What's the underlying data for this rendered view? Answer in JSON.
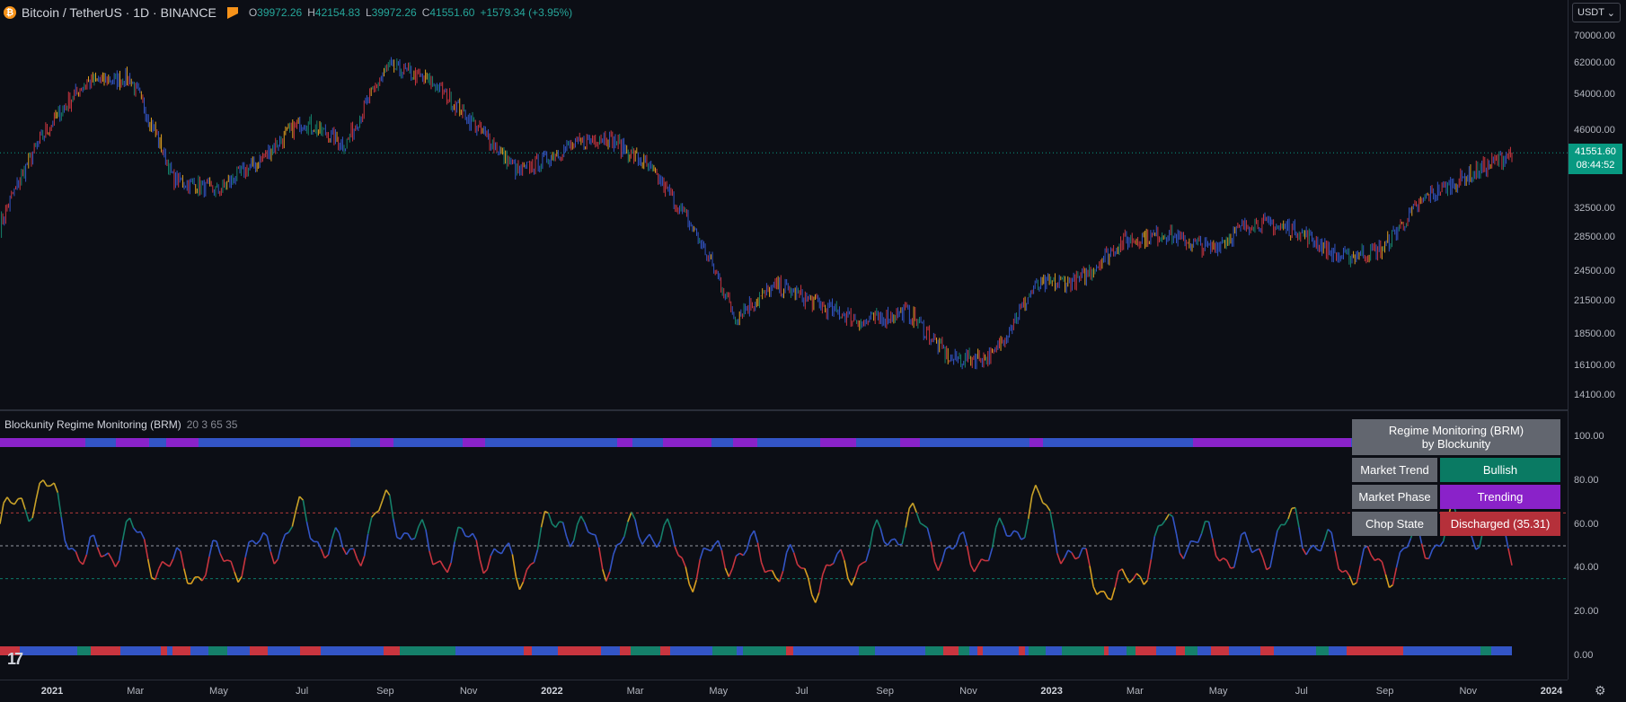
{
  "header": {
    "logo_glyph": "₿",
    "symbol": "Bitcoin / TetherUS · 1D · BINANCE",
    "ohlc": {
      "o_key": "O",
      "o": "39972.26",
      "h_key": "H",
      "h": "42154.83",
      "l_key": "L",
      "l": "39972.26",
      "c_key": "C",
      "c": "41551.60",
      "change": "+1579.34 (+3.95%)"
    }
  },
  "currency_button": {
    "label": "USDT",
    "chevron": "⌄"
  },
  "price_axis": [
    "70000.00",
    "62000.00",
    "54000.00",
    "46000.00",
    "32500.00",
    "28500.00",
    "24500.00",
    "21500.00",
    "18500.00",
    "16100.00",
    "14100.00"
  ],
  "price_axis_values": [
    70000,
    62000,
    54000,
    46000,
    32500,
    28500,
    24500,
    21500,
    18500,
    16100,
    14100
  ],
  "last_price": {
    "price": "41551.60",
    "countdown": "08:44:52"
  },
  "indicator": {
    "name": "Blockunity Regime Monitoring (BRM)",
    "params": "20 3 65 35",
    "axis": [
      "100.00",
      "80.00",
      "60.00",
      "40.00",
      "20.00",
      "0.00"
    ],
    "axis_values": [
      100,
      80,
      60,
      40,
      20,
      0
    ],
    "levels": {
      "upper": 65,
      "mid": 50,
      "lower": 35
    }
  },
  "time_axis": [
    {
      "label": "2021",
      "bold": true
    },
    {
      "label": "Mar",
      "bold": false
    },
    {
      "label": "May",
      "bold": false
    },
    {
      "label": "Jul",
      "bold": false
    },
    {
      "label": "Sep",
      "bold": false
    },
    {
      "label": "Nov",
      "bold": false
    },
    {
      "label": "2022",
      "bold": true
    },
    {
      "label": "Mar",
      "bold": false
    },
    {
      "label": "May",
      "bold": false
    },
    {
      "label": "Jul",
      "bold": false
    },
    {
      "label": "Sep",
      "bold": false
    },
    {
      "label": "Nov",
      "bold": false
    },
    {
      "label": "2023",
      "bold": true
    },
    {
      "label": "Mar",
      "bold": false
    },
    {
      "label": "May",
      "bold": false
    },
    {
      "label": "Jul",
      "bold": false
    },
    {
      "label": "Sep",
      "bold": false
    },
    {
      "label": "Nov",
      "bold": false
    },
    {
      "label": "2024",
      "bold": true
    }
  ],
  "table": {
    "title_line1": "Regime Monitoring (BRM)",
    "title_line2": "by Blockunity",
    "rows": [
      {
        "key": "Market Trend",
        "value": "Bullish",
        "color": "#0a7a63"
      },
      {
        "key": "Market Phase",
        "value": "Trending",
        "color": "#8a22c9"
      },
      {
        "key": "Chop State",
        "value": "Discharged (35.31)",
        "color": "#b5303a"
      }
    ]
  },
  "colors": {
    "bull": "#089981",
    "trend": "#3355c6",
    "purple": "#8a22c9",
    "red": "#c9353f",
    "orange": "#e0a020",
    "green": "#15806a"
  },
  "chart_data": [
    {
      "type": "line",
      "title": "Bitcoin / TetherUS · 1D · BINANCE",
      "x": [
        "2021-01",
        "2021-02",
        "2021-03",
        "2021-04",
        "2021-05",
        "2021-06",
        "2021-07",
        "2021-08",
        "2021-09",
        "2021-10",
        "2021-11",
        "2021-12",
        "2022-01",
        "2022-02",
        "2022-03",
        "2022-04",
        "2022-05",
        "2022-06",
        "2022-07",
        "2022-08",
        "2022-09",
        "2022-10",
        "2022-11",
        "2022-12",
        "2023-01",
        "2023-02",
        "2023-03",
        "2023-04",
        "2023-05",
        "2023-06",
        "2023-07",
        "2023-08",
        "2023-09",
        "2023-10",
        "2023-11",
        "2023-12"
      ],
      "series": [
        {
          "values": [
            30000,
            45000,
            57000,
            58000,
            37000,
            35000,
            40000,
            48000,
            43000,
            61000,
            57000,
            47000,
            38000,
            42000,
            45000,
            39000,
            30000,
            20000,
            23000,
            21000,
            19500,
            20500,
            16500,
            16800,
            23000,
            23500,
            28000,
            29000,
            27000,
            30500,
            29500,
            26000,
            27000,
            34000,
            37500,
            41551
          ]
        }
      ],
      "ylim": [
        14100,
        70000
      ],
      "scale": "log"
    },
    {
      "type": "line",
      "title": "Blockunity Regime Monitoring (BRM)",
      "x": [
        "2021-01",
        "2021-02",
        "2021-03",
        "2021-04",
        "2021-05",
        "2021-06",
        "2021-07",
        "2021-08",
        "2021-09",
        "2021-10",
        "2021-11",
        "2021-12",
        "2022-01",
        "2022-02",
        "2022-03",
        "2022-04",
        "2022-05",
        "2022-06",
        "2022-07",
        "2022-08",
        "2022-09",
        "2022-10",
        "2022-11",
        "2022-12",
        "2023-01",
        "2023-02",
        "2023-03",
        "2023-04",
        "2023-05",
        "2023-06",
        "2023-07",
        "2023-08",
        "2023-09",
        "2023-10",
        "2023-11",
        "2023-12"
      ],
      "series": [
        {
          "values": [
            60,
            78,
            42,
            55,
            38,
            42,
            47,
            62,
            44,
            68,
            45,
            52,
            38,
            64,
            45,
            60,
            40,
            48,
            42,
            35,
            45,
            62,
            46,
            48,
            70,
            40,
            28,
            58,
            50,
            45,
            60,
            42,
            40,
            52,
            60,
            52
          ]
        }
      ],
      "ylim": [
        0,
        105
      ]
    }
  ]
}
